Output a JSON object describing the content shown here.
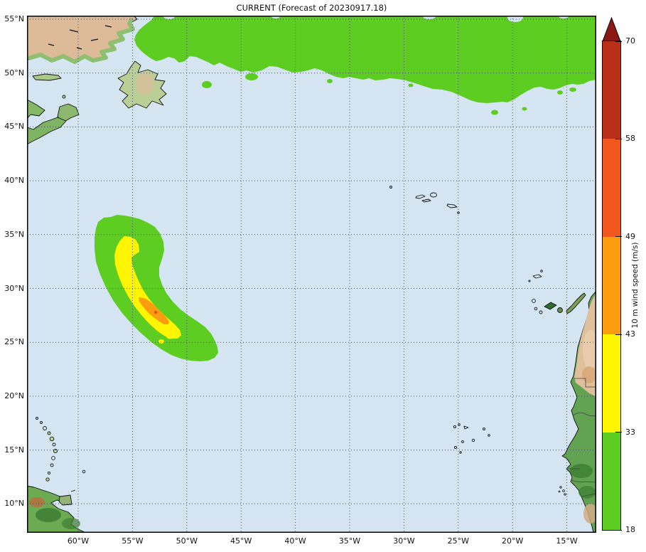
{
  "title": "CURRENT (Forecast of 20230917.18)",
  "axes": {
    "lat_ticks": [
      "55°N",
      "50°N",
      "45°N",
      "40°N",
      "35°N",
      "30°N",
      "25°N",
      "20°N",
      "15°N",
      "10°N"
    ],
    "lon_ticks": [
      "60°W",
      "55°W",
      "50°W",
      "45°W",
      "40°W",
      "35°W",
      "30°W",
      "25°W",
      "20°W",
      "15°W"
    ]
  },
  "colorbar": {
    "label": "10 m wind speed (m/s)",
    "tick_labels": [
      "18",
      "33",
      "43",
      "49",
      "58",
      "70"
    ],
    "segment_colors": [
      "#5ecd22",
      "#fff500",
      "#fc9d10",
      "#f1561c",
      "#ba2f18"
    ],
    "arrow_color": "#8d1a12"
  },
  "colors": {
    "ocean": "#d5e6f2",
    "band_18_33": "#5ecd22",
    "band_33_43": "#fff500",
    "band_43_49": "#fc9d10",
    "band_49_58": "#ee4c14",
    "gridline": "#4a5560"
  },
  "wind_field": {
    "units": "m/s",
    "bands": [
      {
        "range": "18-33",
        "color": "#5ecd22"
      },
      {
        "range": "33-43",
        "color": "#fff500"
      },
      {
        "range": "43-49",
        "color": "#fc9d10"
      },
      {
        "range": "49-58",
        "color": "#f1561c"
      },
      {
        "range": "58-70",
        "color": "#ba2f18"
      }
    ]
  }
}
